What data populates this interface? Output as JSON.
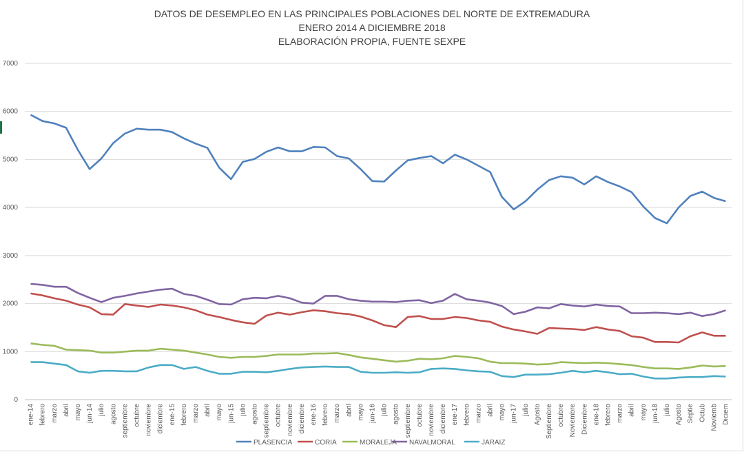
{
  "chart_data": {
    "type": "line",
    "title_lines": [
      "DATOS DE DESEMPLEO EN LAS PRINCIPALES POBLACIONES DEL NORTE DE EXTREMADURA",
      "ENERO 2014 A  DICIEMBRE 2018",
      "ELABORACIÓN PROPIA, FUENTE SEXPE"
    ],
    "ylim": [
      0,
      7000
    ],
    "yticks": [
      0,
      1000,
      2000,
      3000,
      4000,
      5000,
      6000,
      7000
    ],
    "grid": true,
    "legend_position": "bottom",
    "categories": [
      "ene-14",
      "febrero",
      "marzo",
      "abril",
      "mayo",
      "jun-14",
      "julio",
      "agosto",
      "septiembre",
      "octubre",
      "noviembre",
      "diciembre",
      "ene-15",
      "febrero",
      "marzo",
      "abril",
      "mayo",
      "jun-15",
      "julio",
      "agosto",
      "septiembre",
      "octubre",
      "noviembre",
      "diciembre",
      "ene-16",
      "febrero",
      "marzo",
      "abril",
      "mayo",
      "jun-16",
      "julio",
      "agosto",
      "septiembre",
      "octubre",
      "noviembre",
      "diciembre",
      "ene-17",
      "febrero",
      "marzo",
      "abril",
      "mayo",
      "jun-17",
      "julio",
      "Agosto",
      "Septiembre",
      "octubre",
      "Noviembre",
      "Diciembre",
      "ene-18",
      "febrero",
      "marzo",
      "abril",
      "mayo",
      "jun-18",
      "julio",
      "Agosto",
      "Septie",
      "Octub",
      "Noviemb",
      "Diciem"
    ],
    "series": [
      {
        "name": "PLASENCIA",
        "color": "#4f81bd",
        "values": [
          5930,
          5800,
          5750,
          5660,
          5200,
          4800,
          5020,
          5340,
          5540,
          5640,
          5620,
          5620,
          5570,
          5440,
          5330,
          5240,
          4830,
          4590,
          4950,
          5010,
          5160,
          5250,
          5170,
          5170,
          5260,
          5250,
          5070,
          5020,
          4800,
          4550,
          4540,
          4770,
          4980,
          5030,
          5070,
          4920,
          5100,
          5000,
          4870,
          4740,
          4220,
          3960,
          4130,
          4370,
          4570,
          4650,
          4620,
          4480,
          4650,
          4530,
          4440,
          4320,
          4020,
          3780,
          3670,
          4000,
          4240,
          4330,
          4200,
          4130
        ]
      },
      {
        "name": "CORIA",
        "color": "#c0504d",
        "values": [
          2210,
          2170,
          2110,
          2060,
          1980,
          1920,
          1780,
          1770,
          1990,
          1960,
          1930,
          1980,
          1960,
          1920,
          1860,
          1770,
          1720,
          1660,
          1610,
          1580,
          1750,
          1810,
          1770,
          1820,
          1860,
          1840,
          1800,
          1780,
          1730,
          1650,
          1550,
          1510,
          1720,
          1740,
          1680,
          1680,
          1720,
          1700,
          1650,
          1620,
          1520,
          1460,
          1420,
          1370,
          1490,
          1480,
          1470,
          1450,
          1510,
          1460,
          1430,
          1320,
          1290,
          1200,
          1200,
          1190,
          1320,
          1400,
          1330,
          1330
        ]
      },
      {
        "name": "MORALEJA",
        "color": "#9bbb59",
        "values": [
          1170,
          1140,
          1120,
          1040,
          1030,
          1020,
          980,
          980,
          1000,
          1020,
          1020,
          1060,
          1040,
          1020,
          980,
          940,
          890,
          870,
          890,
          890,
          910,
          940,
          940,
          940,
          960,
          960,
          970,
          930,
          880,
          850,
          820,
          790,
          810,
          850,
          840,
          860,
          910,
          890,
          860,
          790,
          760,
          760,
          750,
          730,
          740,
          780,
          770,
          760,
          770,
          760,
          740,
          720,
          680,
          650,
          650,
          640,
          670,
          710,
          690,
          700
        ]
      },
      {
        "name": "NAVALMORAL",
        "color": "#8064a2",
        "values": [
          2410,
          2390,
          2350,
          2350,
          2220,
          2120,
          2030,
          2120,
          2160,
          2210,
          2250,
          2290,
          2310,
          2200,
          2160,
          2080,
          1990,
          1980,
          2090,
          2120,
          2110,
          2160,
          2110,
          2020,
          2000,
          2160,
          2160,
          2090,
          2060,
          2040,
          2040,
          2030,
          2060,
          2070,
          2010,
          2060,
          2200,
          2090,
          2060,
          2020,
          1950,
          1780,
          1830,
          1920,
          1900,
          1990,
          1960,
          1940,
          1980,
          1950,
          1940,
          1800,
          1800,
          1810,
          1800,
          1780,
          1810,
          1740,
          1780,
          1860
        ]
      },
      {
        "name": "JARAIZ",
        "color": "#4bacc6",
        "values": [
          780,
          780,
          750,
          720,
          590,
          560,
          600,
          600,
          590,
          590,
          670,
          720,
          720,
          640,
          680,
          600,
          540,
          540,
          580,
          580,
          570,
          600,
          640,
          670,
          680,
          690,
          680,
          680,
          580,
          560,
          560,
          570,
          560,
          570,
          640,
          650,
          640,
          610,
          590,
          580,
          490,
          470,
          520,
          520,
          530,
          560,
          600,
          570,
          600,
          570,
          530,
          540,
          480,
          440,
          440,
          460,
          470,
          470,
          490,
          480
        ]
      }
    ]
  }
}
